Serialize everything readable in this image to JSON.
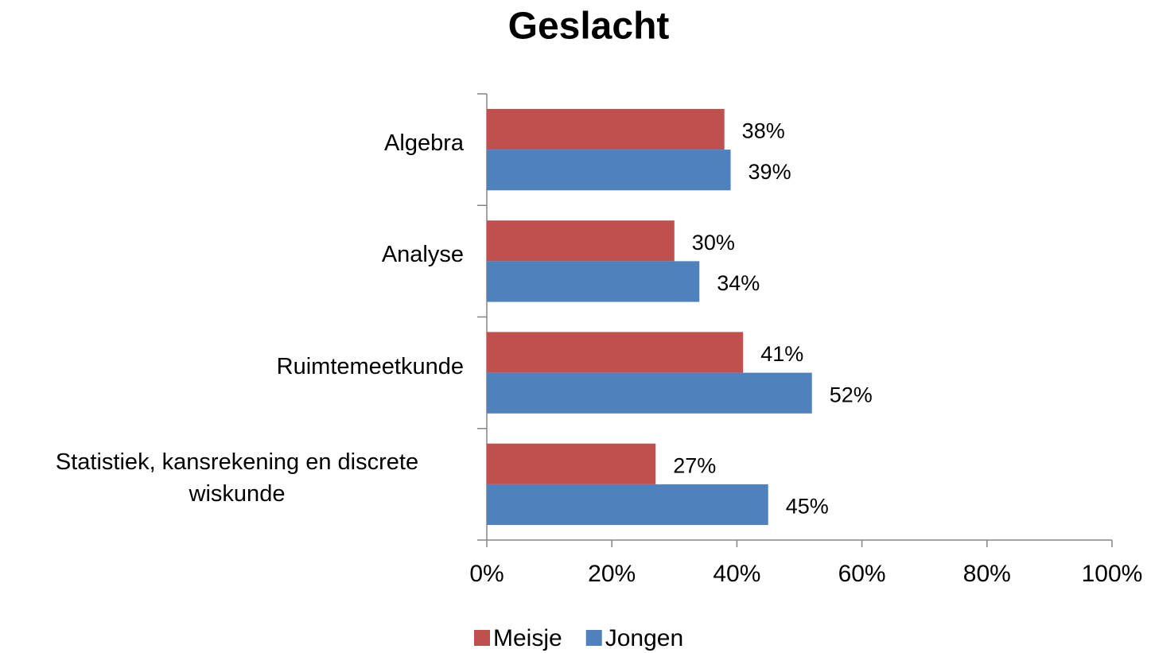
{
  "chart_data": {
    "type": "barh",
    "title": "Geslacht",
    "categories": [
      "Algebra",
      "Analyse",
      "Ruimtemeetkunde",
      "Statistiek, kansrekening en discrete wiskunde"
    ],
    "series": [
      {
        "name": "Meisje",
        "color": "#c0504d",
        "values": [
          38,
          30,
          41,
          27
        ],
        "value_labels": [
          "38%",
          "30%",
          "41%",
          "27%"
        ]
      },
      {
        "name": "Jongen",
        "color": "#4f81bd",
        "values": [
          39,
          34,
          52,
          45
        ],
        "value_labels": [
          "39%",
          "34%",
          "52%",
          "45%"
        ]
      }
    ],
    "xlim": [
      0,
      100
    ],
    "xticks": [
      {
        "value": 0,
        "label": "0%"
      },
      {
        "value": 20,
        "label": "20%"
      },
      {
        "value": 40,
        "label": "40%"
      },
      {
        "value": 60,
        "label": "60%"
      },
      {
        "value": 80,
        "label": "80%"
      },
      {
        "value": 100,
        "label": "100%"
      }
    ],
    "legend": "bottom"
  }
}
